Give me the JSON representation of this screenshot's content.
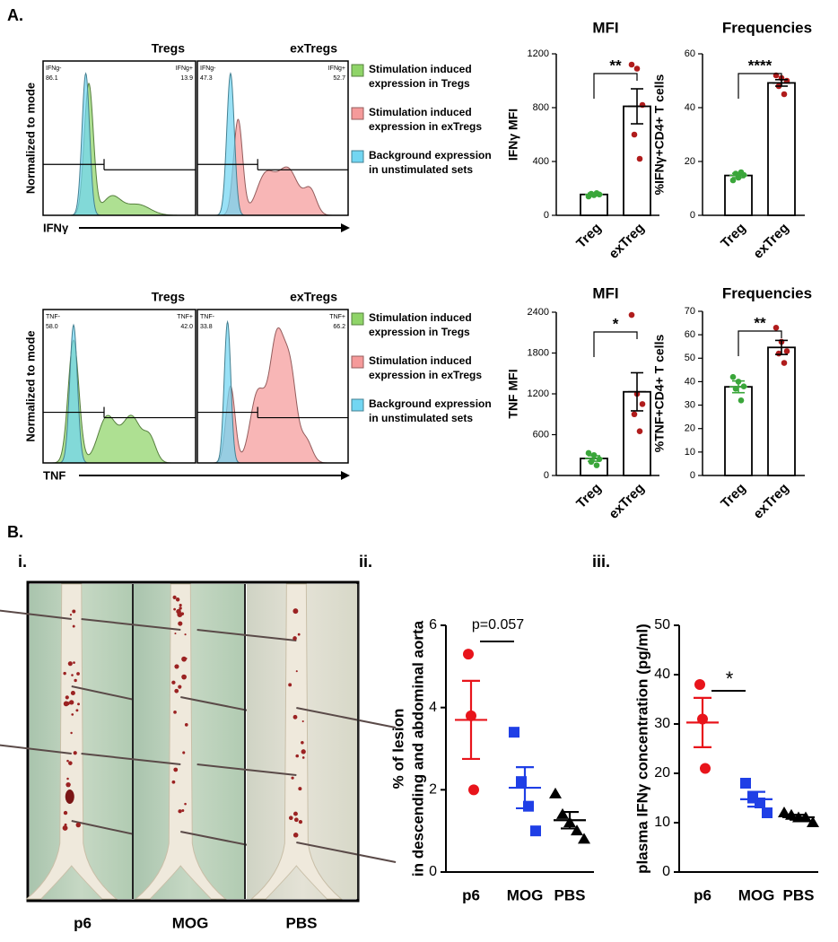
{
  "panel_labels": {
    "a": "A.",
    "b": "B.",
    "b_i": "i.",
    "b_ii": "ii.",
    "b_iii": "iii."
  },
  "photos": {
    "labels": [
      "p6",
      "MOG",
      "PBS"
    ]
  },
  "chart_data": [
    {
      "type": "flow",
      "y_label": "Normalized to mode",
      "x_label": "IFNγ",
      "panels": [
        {
          "title": "Tregs",
          "gates": [
            {
              "label": "IFNg-",
              "percent": 86.1
            },
            {
              "label": "IFNg+",
              "percent": 13.9
            }
          ]
        },
        {
          "title": "exTregs",
          "gates": [
            {
              "label": "IFNg-",
              "percent": 47.3
            },
            {
              "label": "IFNg+",
              "percent": 52.7
            }
          ]
        }
      ],
      "legend": [
        {
          "lines": [
            "Stimulation induced",
            "expression in Tregs"
          ],
          "color": "#8fd468"
        },
        {
          "lines": [
            "Stimulation induced",
            "expression in exTregs"
          ],
          "color": "#f59a9a"
        },
        {
          "lines": [
            "Background expression",
            "in unstimulated sets"
          ],
          "color": "#72d6f2"
        }
      ]
    },
    {
      "type": "flow",
      "y_label": "Normalized to mode",
      "x_label": "TNF",
      "panels": [
        {
          "title": "Tregs",
          "gates": [
            {
              "label": "TNF-",
              "percent": {
                "value": 58,
                "label": "58.0"
              }
            },
            {
              "label": "TNF+",
              "percent": {
                "value": 42,
                "label": "42.0"
              }
            }
          ]
        },
        {
          "title": "exTregs",
          "gates": [
            {
              "label": "TNF-",
              "percent": 33.8
            },
            {
              "label": "TNF+",
              "percent": 66.2
            }
          ]
        }
      ],
      "legend": [
        {
          "lines": [
            "Stimulation induced",
            "expression in Tregs"
          ],
          "color": "#8fd468"
        },
        {
          "lines": [
            "Stimulation induced",
            "expression in exTregs"
          ],
          "color": "#f59a9a"
        },
        {
          "lines": [
            "Background expression",
            "in unstimulated sets"
          ],
          "color": "#72d6f2"
        }
      ]
    },
    {
      "type": "bar",
      "title": "MFI",
      "y_label": "IFNγ MFI",
      "categories": [
        "Treg",
        "exTreg"
      ],
      "values": [
        155,
        810
      ],
      "errors": [
        10,
        130
      ],
      "points": [
        [
          140,
          150,
          155,
          160,
          165
        ],
        [
          1120,
          1090,
          820,
          600,
          420
        ]
      ],
      "colors": [
        "#3aa63a",
        "#b01c1c"
      ],
      "error_colors": [
        "#3aa63a",
        "#000000"
      ],
      "ylim": [
        0,
        1200
      ],
      "yticks": [
        0,
        400,
        800,
        1200
      ],
      "significance": "**"
    },
    {
      "type": "bar",
      "title": "Frequencies",
      "y_label": "%IFNγ+CD4+ T cells",
      "categories": [
        "Treg",
        "exTreg"
      ],
      "values": [
        14.8,
        49.2
      ],
      "errors": [
        0.8,
        1.2
      ],
      "points": [
        [
          13,
          14,
          15,
          15.5,
          16
        ],
        [
          52,
          51,
          50,
          48,
          45
        ]
      ],
      "colors": [
        "#3aa63a",
        "#b01c1c"
      ],
      "error_colors": [
        "#3aa63a",
        "#000000"
      ],
      "ylim": [
        0,
        60
      ],
      "yticks": [
        0,
        20,
        40,
        60
      ],
      "significance": "****"
    },
    {
      "type": "bar",
      "title": "MFI",
      "y_label": "TNF MFI",
      "categories": [
        "Treg",
        "exTreg"
      ],
      "values": [
        250,
        1230
      ],
      "errors": [
        40,
        280
      ],
      "points": [
        [
          330,
          300,
          240,
          200,
          150
        ],
        [
          2360,
          1200,
          1050,
          900,
          650
        ]
      ],
      "colors": [
        "#3aa63a",
        "#b01c1c"
      ],
      "error_colors": [
        "#3aa63a",
        "#000000"
      ],
      "ylim": [
        0,
        2400
      ],
      "yticks": [
        0,
        600,
        1200,
        1800,
        2400
      ],
      "significance": "*"
    },
    {
      "type": "bar",
      "title": "Frequencies",
      "y_label": "%TNF+CD4+ T cells",
      "categories": [
        "Treg",
        "exTreg"
      ],
      "values": [
        37.8,
        54.6
      ],
      "errors": [
        2.5,
        3
      ],
      "points": [
        [
          42,
          40,
          38,
          37,
          32
        ],
        [
          63,
          57,
          53,
          52,
          48
        ]
      ],
      "colors": [
        "#3aa63a",
        "#b01c1c"
      ],
      "error_colors": [
        "#3aa63a",
        "#000000"
      ],
      "ylim": [
        0,
        70
      ],
      "yticks": [
        0,
        10,
        20,
        30,
        40,
        50,
        60,
        70
      ],
      "significance": "**"
    },
    {
      "type": "dot",
      "y_label": [
        "% of lesion",
        "in descending and abdominal aorta"
      ],
      "categories": [
        "p6",
        "MOG",
        "PBS"
      ],
      "values": [
        3.7,
        2.05,
        1.26
      ],
      "errors": [
        0.95,
        0.5,
        0.2
      ],
      "points": [
        [
          5.3,
          3.8,
          2.0
        ],
        [
          3.4,
          2.2,
          1.6,
          1.0
        ],
        [
          1.9,
          1.4,
          1.2,
          1.0,
          0.8
        ]
      ],
      "markers": [
        "circle",
        "square",
        "triangle"
      ],
      "colors": [
        "#e8141b",
        "#1f3fe6",
        "#000000"
      ],
      "ylim": [
        0,
        6
      ],
      "yticks": [
        0,
        2,
        4,
        6
      ],
      "significance": "p=0.057"
    },
    {
      "type": "dot",
      "y_label": [
        "plasma IFNγ concentration (pg/ml)"
      ],
      "categories": [
        "p6",
        "MOG",
        "PBS"
      ],
      "values": [
        30.3,
        14.75,
        11.1
      ],
      "errors": [
        5,
        1.5,
        0.5
      ],
      "points": [
        [
          38,
          31,
          21
        ],
        [
          18,
          15,
          14,
          12
        ],
        [
          12,
          11.5,
          11,
          11,
          10
        ]
      ],
      "markers": [
        "circle",
        "square",
        "triangle"
      ],
      "colors": [
        "#e8141b",
        "#1f3fe6",
        "#000000"
      ],
      "ylim": [
        0,
        50
      ],
      "yticks": [
        0,
        10,
        20,
        30,
        40,
        50
      ],
      "significance": "*"
    }
  ]
}
